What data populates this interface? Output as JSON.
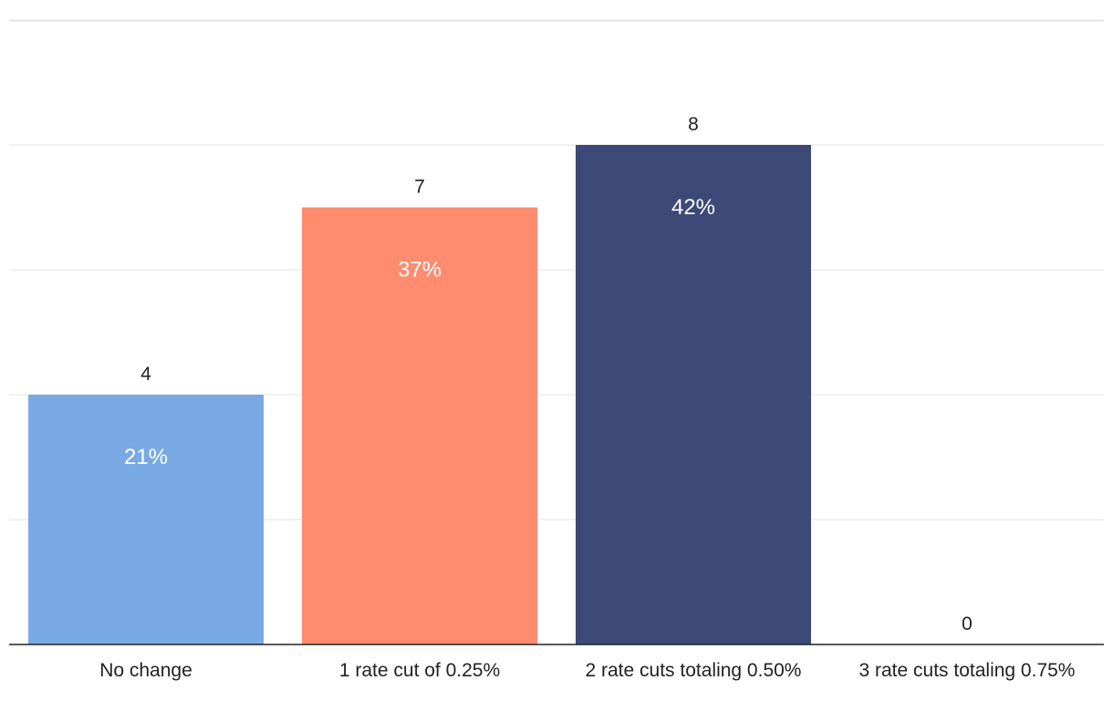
{
  "chart_data": {
    "type": "bar",
    "title": "",
    "xlabel": "",
    "ylabel": "",
    "categories": [
      "No change",
      "1 rate cut of 0.25%",
      "2 rate cuts totaling 0.50%",
      "3 rate cuts totaling 0.75%"
    ],
    "values": [
      4,
      7,
      8,
      0
    ],
    "percent_labels": [
      "21%",
      "37%",
      "42%",
      ""
    ],
    "colors": [
      "#7aaae3",
      "#ff8c6e",
      "#3d4976",
      "#7aaae3"
    ],
    "ylim": [
      0,
      10
    ],
    "grid": true
  }
}
